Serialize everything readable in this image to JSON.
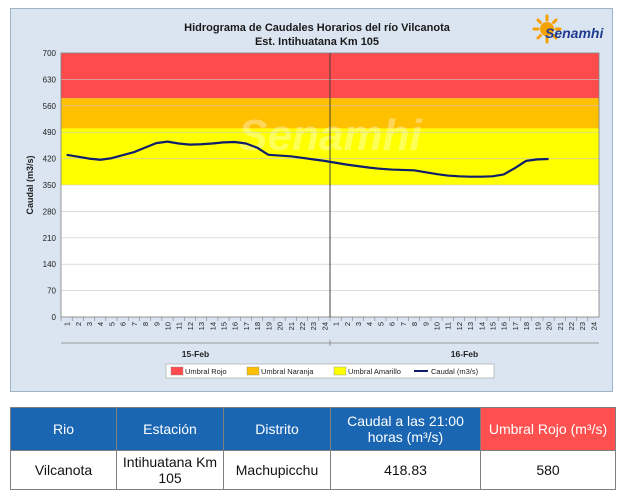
{
  "chart_data": {
    "type": "line",
    "title": "Hidrograma de Caudales Horarios del río Vilcanota",
    "subtitle": "Est. Intihuatana Km 105",
    "ylabel": "Caudal  (m3/s)",
    "ylim": [
      0,
      700
    ],
    "yticks": [
      0,
      70,
      140,
      210,
      280,
      350,
      420,
      490,
      560,
      630,
      700
    ],
    "xticks": [
      "1",
      "2",
      "3",
      "4",
      "5",
      "6",
      "7",
      "8",
      "9",
      "10",
      "11",
      "12",
      "13",
      "14",
      "15",
      "16",
      "17",
      "18",
      "19",
      "20",
      "21",
      "22",
      "23",
      "24",
      "1",
      "2",
      "3",
      "4",
      "5",
      "6",
      "7",
      "8",
      "9",
      "10",
      "11",
      "12",
      "13",
      "14",
      "15",
      "16",
      "17",
      "18",
      "19",
      "20",
      "21",
      "22",
      "23",
      "24"
    ],
    "day_labels": [
      "15-Feb",
      "16-Feb"
    ],
    "bands": [
      {
        "name": "Umbral Rojo",
        "from": 580,
        "to": 700,
        "color": "#ff4b4b"
      },
      {
        "name": "Umbral Naranja",
        "from": 500,
        "to": 580,
        "color": "#ffc000"
      },
      {
        "name": "Umbral Amarillo",
        "from": 350,
        "to": 500,
        "color": "#ffff00"
      }
    ],
    "series": [
      {
        "name": "Caudal (m3/s)",
        "color": "#0f1f6b",
        "values": [
          430,
          425,
          420,
          417,
          421,
          429,
          437,
          449,
          461,
          465,
          460,
          457,
          458,
          460,
          463,
          464,
          460,
          449,
          430,
          428,
          426,
          422,
          418,
          414,
          409,
          404,
          400,
          396,
          393,
          391,
          390,
          389,
          384,
          379,
          375,
          373,
          372,
          372,
          373,
          378,
          395,
          414,
          418,
          419
        ]
      }
    ],
    "legend_position": "bottom",
    "watermark": "Senamhi"
  },
  "logo_text": "Senamhi",
  "table": {
    "headers": [
      "Rio",
      "Estación",
      "Distrito",
      "Caudal a las 21:00 horas (m³/s)",
      "Umbral Rojo (m³/s)"
    ],
    "row": [
      "Vilcanota",
      "Intihuatana Km 105",
      "Machupicchu",
      "418.83",
      "580"
    ]
  }
}
